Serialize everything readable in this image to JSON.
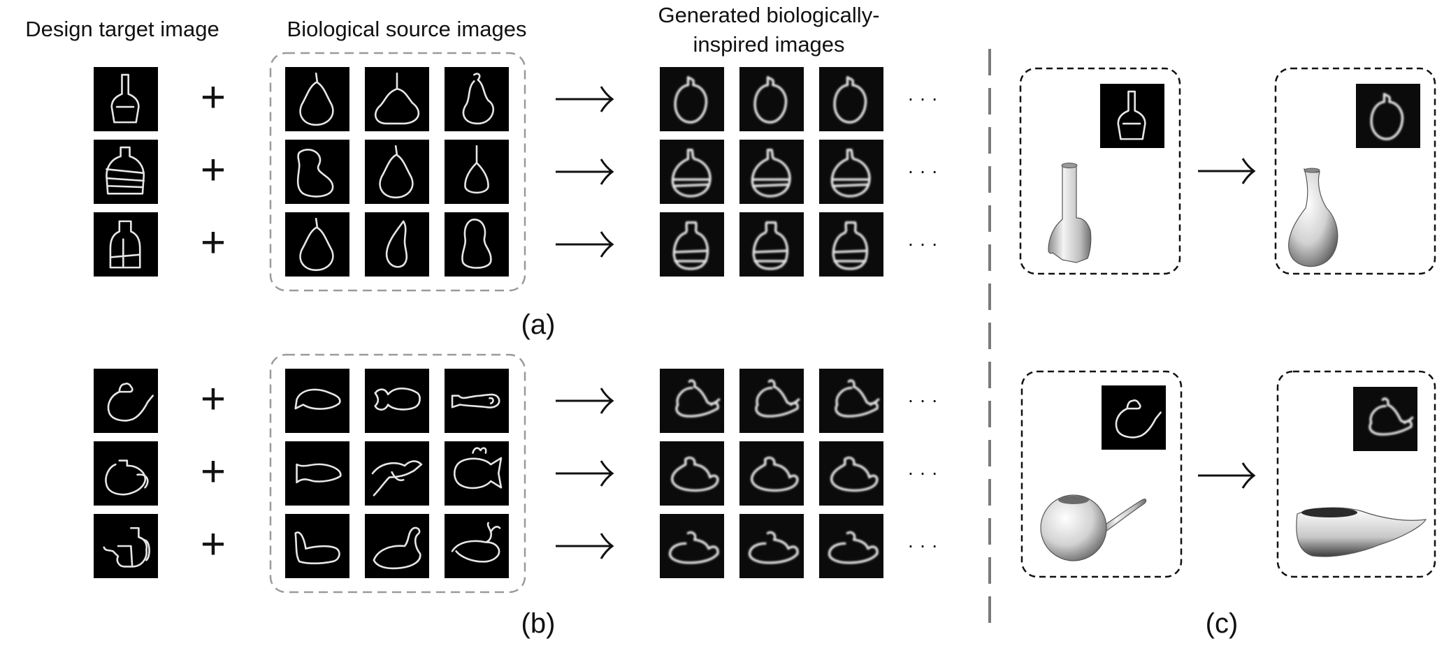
{
  "headers": {
    "design_target": "Design target image",
    "biological_source": "Biological source images",
    "generated_line1": "Generated biologically-",
    "generated_line2": "inspired images"
  },
  "symbols": {
    "plus": "+",
    "ellipsis": "· · ·"
  },
  "panel_labels": {
    "a": "(a)",
    "b": "(b)",
    "c": "(c)"
  },
  "panel_a": {
    "subject": "bottle",
    "targets": [
      "bottle-stopper",
      "bottle-banded",
      "bottle-jar"
    ],
    "sources": [
      [
        "pear",
        "pear-wide",
        "pear-tilt"
      ],
      [
        "pear-blob",
        "pear",
        "pear-slim"
      ],
      [
        "pear",
        "pear-crescent",
        "pear-tall"
      ]
    ],
    "generated": [
      [
        "gen-round",
        "gen-round",
        "gen-round"
      ],
      [
        "gen-banded",
        "gen-banded",
        "gen-banded"
      ],
      [
        "gen-jar",
        "gen-jar",
        "gen-jar"
      ]
    ]
  },
  "panel_b": {
    "subject": "teapot",
    "targets": [
      "teapot-spout",
      "teapot-round",
      "teapot-handle"
    ],
    "sources": [
      [
        "fish",
        "fish-forked",
        "fish-long"
      ],
      [
        "fish-tail",
        "dolphin",
        "fish-cartoon"
      ],
      [
        "whale",
        "whale-curve",
        "whale-spout"
      ]
    ],
    "generated": [
      [
        "gen-pot",
        "gen-pot",
        "gen-pot"
      ],
      [
        "gen-pot-wide",
        "gen-pot-wide",
        "gen-pot-wide"
      ],
      [
        "gen-pot-low",
        "gen-pot-low",
        "gen-pot-low"
      ]
    ]
  },
  "panel_c": {
    "rows": [
      {
        "input_render": "vase-3d",
        "input_sketch": "bottle-stopper",
        "output_render": "gourd-vase-3d",
        "output_sketch": "gen-round"
      },
      {
        "input_render": "teapot-3d",
        "input_sketch": "teapot-spout",
        "output_render": "whale-teapot-3d",
        "output_sketch": "gen-pot"
      }
    ]
  },
  "colors": {
    "tile_bg": "#000000",
    "stroke": "#e6e6e6",
    "dashed_gray": "#9a9a9a",
    "divider": "#7a7a7a",
    "box_border": "#111111"
  }
}
